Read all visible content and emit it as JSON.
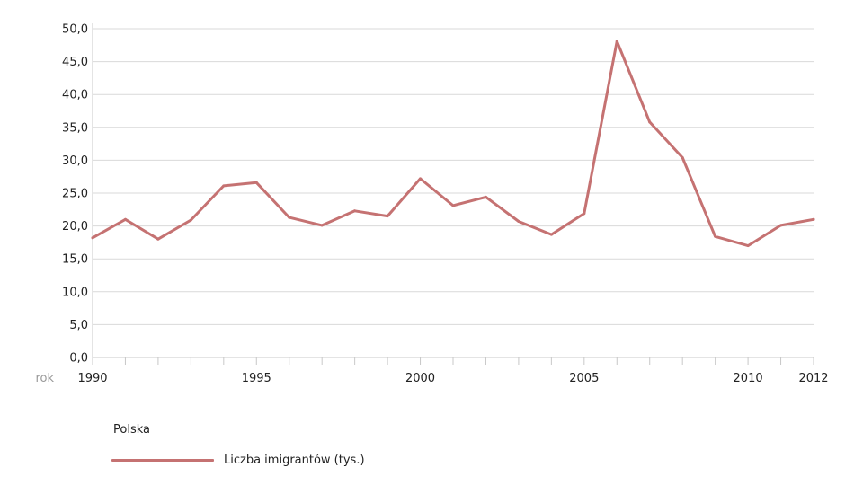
{
  "chart_data": {
    "type": "line",
    "title": "",
    "xlabel": "rok",
    "ylabel": "",
    "x": [
      1990,
      1991,
      1992,
      1993,
      1994,
      1995,
      1996,
      1997,
      1998,
      1999,
      2000,
      2001,
      2002,
      2003,
      2004,
      2005,
      2006,
      2007,
      2008,
      2009,
      2010,
      2011,
      2012
    ],
    "x_tick_values": [
      1990,
      1995,
      2000,
      2005,
      2010,
      2012
    ],
    "x_tick_labels": [
      "1990",
      "1995",
      "2000",
      "2005",
      "2010",
      "2012"
    ],
    "xlim": [
      1990,
      2012
    ],
    "ylim": [
      0,
      50
    ],
    "y_tick_values": [
      0,
      5,
      10,
      15,
      20,
      25,
      30,
      35,
      40,
      45,
      50
    ],
    "y_tick_labels": [
      "0,0",
      "5,0",
      "10,0",
      "15,0",
      "20,0",
      "25,0",
      "30,0",
      "35,0",
      "40,0",
      "45,0",
      "50,0"
    ],
    "grid": true,
    "legend_title": "Polska",
    "legend_position": "bottom-left",
    "series": [
      {
        "name": "Liczba imigrantów (tys.)",
        "color": "#c57272",
        "values": [
          18.2,
          21.0,
          18.0,
          20.9,
          26.1,
          26.6,
          21.3,
          20.1,
          22.3,
          21.5,
          27.2,
          23.1,
          24.4,
          20.7,
          18.7,
          21.9,
          48.1,
          35.8,
          30.4,
          18.4,
          17.0,
          20.1,
          21.0
        ]
      }
    ]
  },
  "legend": {
    "title": "Polska",
    "item_label": "Liczba imigrantów (tys.)"
  }
}
